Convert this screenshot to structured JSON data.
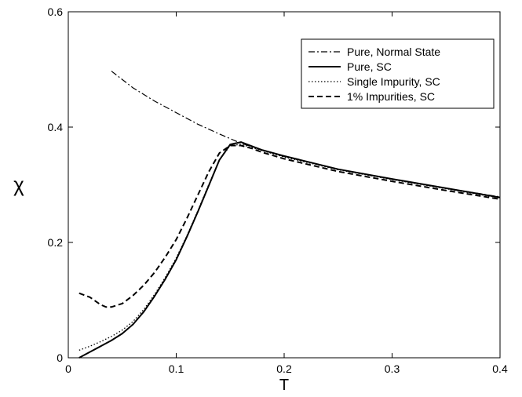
{
  "chart_data": {
    "type": "line",
    "title": "",
    "xlabel": "T",
    "ylabel": "χ",
    "xlim": [
      0,
      0.4
    ],
    "ylim": [
      0,
      0.6
    ],
    "xticks": [
      0,
      0.1,
      0.2,
      0.3,
      0.4
    ],
    "yticks": [
      0,
      0.2,
      0.4,
      0.6
    ],
    "xtick_labels": [
      "0",
      "0.1",
      "0.2",
      "0.3",
      "0.4"
    ],
    "ytick_labels": [
      "0",
      "0.2",
      "0.4",
      "0.6"
    ],
    "grid": false,
    "legend_position": "top-right",
    "series": [
      {
        "name": "Pure, Normal State",
        "style": "dash-dot",
        "color": "#000000",
        "x": [
          0.04,
          0.06,
          0.08,
          0.1,
          0.12,
          0.14,
          0.16,
          0.18,
          0.2,
          0.25,
          0.3,
          0.35,
          0.4
        ],
        "y": [
          0.497,
          0.468,
          0.445,
          0.425,
          0.405,
          0.388,
          0.372,
          0.36,
          0.349,
          0.327,
          0.31,
          0.294,
          0.279
        ]
      },
      {
        "name": "Pure, SC",
        "style": "solid",
        "color": "#000000",
        "x": [
          0.01,
          0.02,
          0.03,
          0.04,
          0.05,
          0.06,
          0.07,
          0.08,
          0.09,
          0.1,
          0.11,
          0.12,
          0.13,
          0.14,
          0.15,
          0.16,
          0.17,
          0.18,
          0.2,
          0.25,
          0.3,
          0.35,
          0.4
        ],
        "y": [
          0.0,
          0.01,
          0.02,
          0.03,
          0.042,
          0.058,
          0.08,
          0.107,
          0.137,
          0.17,
          0.21,
          0.253,
          0.298,
          0.343,
          0.37,
          0.374,
          0.367,
          0.36,
          0.35,
          0.327,
          0.31,
          0.294,
          0.278
        ]
      },
      {
        "name": "Single Impurity, SC",
        "style": "dotted",
        "color": "#000000",
        "x": [
          0.01,
          0.02,
          0.03,
          0.04,
          0.05,
          0.06,
          0.07,
          0.08,
          0.09,
          0.1,
          0.11,
          0.12,
          0.13,
          0.14,
          0.15,
          0.16,
          0.18,
          0.2,
          0.25,
          0.3,
          0.35,
          0.4
        ],
        "y": [
          0.013,
          0.02,
          0.028,
          0.037,
          0.048,
          0.063,
          0.084,
          0.11,
          0.14,
          0.173,
          0.212,
          0.255,
          0.3,
          0.343,
          0.368,
          0.37,
          0.359,
          0.348,
          0.326,
          0.309,
          0.293,
          0.277
        ]
      },
      {
        "name": "1% Impurities, SC",
        "style": "dashed",
        "color": "#000000",
        "x": [
          0.01,
          0.02,
          0.03,
          0.035,
          0.04,
          0.05,
          0.06,
          0.07,
          0.08,
          0.09,
          0.1,
          0.11,
          0.12,
          0.13,
          0.14,
          0.15,
          0.16,
          0.17,
          0.18,
          0.2,
          0.25,
          0.3,
          0.35,
          0.4
        ],
        "y": [
          0.112,
          0.105,
          0.092,
          0.088,
          0.088,
          0.094,
          0.108,
          0.126,
          0.148,
          0.175,
          0.205,
          0.242,
          0.282,
          0.322,
          0.355,
          0.368,
          0.368,
          0.363,
          0.356,
          0.345,
          0.323,
          0.306,
          0.29,
          0.275
        ]
      }
    ]
  }
}
